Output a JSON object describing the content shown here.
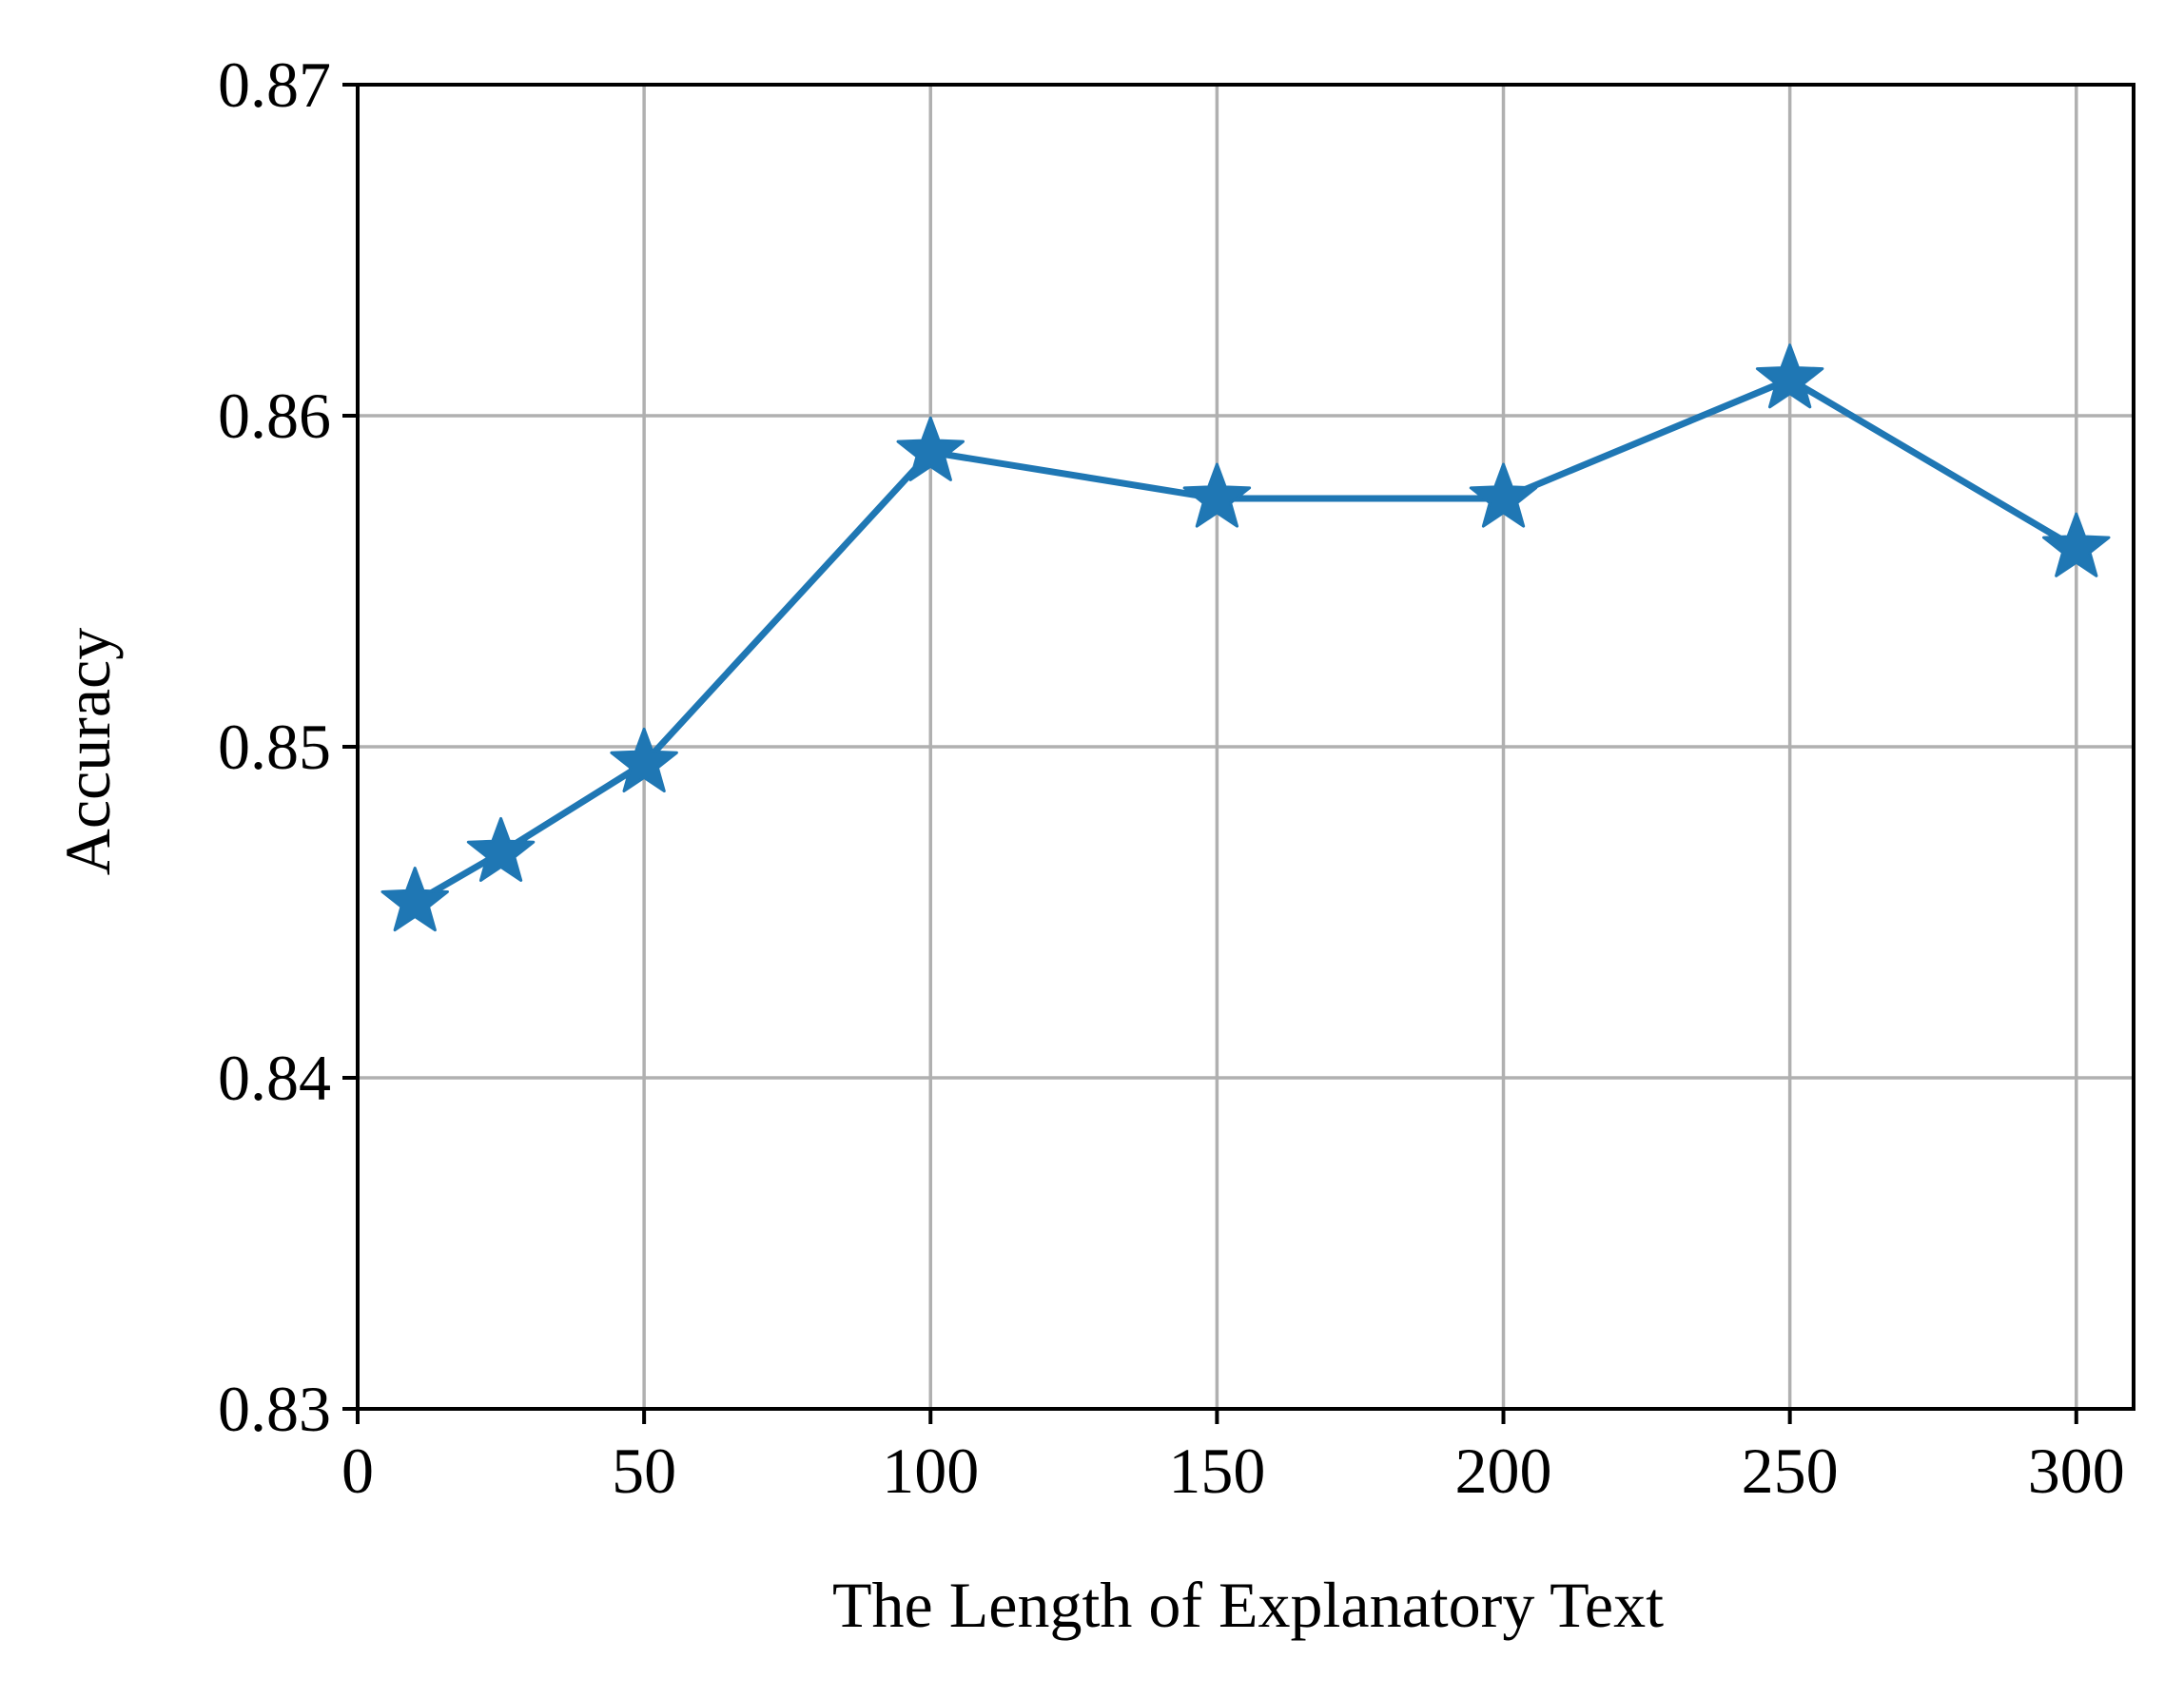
{
  "chart_data": {
    "type": "line",
    "title": "",
    "xlabel": "The Length of Explanatory Text",
    "ylabel": "Accuracy",
    "xlim": [
      0,
      310
    ],
    "ylim": [
      0.83,
      0.87
    ],
    "xticks": [
      0,
      50,
      100,
      150,
      200,
      250,
      300
    ],
    "xtick_labels": [
      "0",
      "50",
      "100",
      "150",
      "200",
      "250",
      "300"
    ],
    "yticks": [
      0.83,
      0.84,
      0.85,
      0.86,
      0.87
    ],
    "ytick_labels": [
      "0.83",
      "0.84",
      "0.85",
      "0.86",
      "0.87"
    ],
    "grid": true,
    "legend": null,
    "series": [
      {
        "marker": "star",
        "color": "#1f77b4",
        "x": [
          10,
          25,
          50,
          100,
          150,
          200,
          250,
          300
        ],
        "y": [
          0.8453,
          0.8468,
          0.8495,
          0.8589,
          0.8575,
          0.8575,
          0.8611,
          0.856
        ]
      }
    ]
  },
  "colors": {
    "series": "#1f77b4",
    "grid": "#b0b0b0",
    "axes": "#000000"
  }
}
